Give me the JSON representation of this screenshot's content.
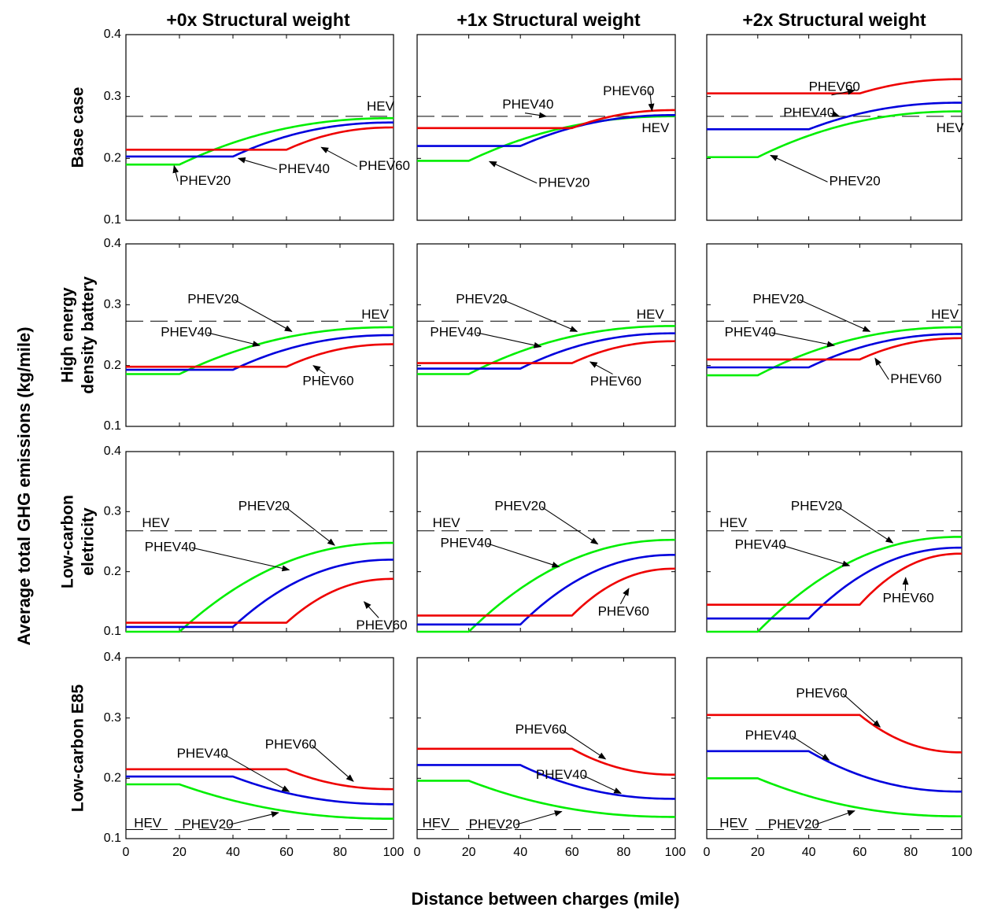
{
  "figure": {
    "y_axis_title": "Average total GHG emissions (kg/mile)",
    "x_axis_title": "Distance between charges (mile)",
    "column_titles": [
      "+0x Structural weight",
      "+1x Structural weight",
      "+2x Structural weight"
    ],
    "row_titles": [
      [
        "Base case"
      ],
      [
        "High energy",
        "density  battery"
      ],
      [
        "Low-carbon",
        "eletricity"
      ],
      [
        "Low-carbon E85"
      ]
    ]
  },
  "colors": {
    "PHEV20": "#00ee00",
    "PHEV40": "#0000dd",
    "PHEV60": "#ee0000",
    "HEV": "#000000"
  },
  "chart_data": [
    {
      "type": "line",
      "row": 0,
      "col": 0,
      "xlim": [
        0,
        100
      ],
      "ylim": [
        0.1,
        0.4
      ],
      "xticks": [
        0,
        20,
        40,
        60,
        80,
        100
      ],
      "yticks": [
        0.1,
        0.2,
        0.3,
        0.4
      ],
      "hev": 0.268,
      "series": [
        {
          "name": "PHEV20",
          "kind": "rise",
          "flat": 0.19,
          "at": 20,
          "end": 0.265
        },
        {
          "name": "PHEV40",
          "kind": "rise",
          "flat": 0.203,
          "at": 40,
          "end": 0.258
        },
        {
          "name": "PHEV60",
          "kind": "rise",
          "flat": 0.214,
          "at": 60,
          "end": 0.25
        }
      ],
      "annotations": [
        {
          "label": "HEV",
          "tx": 90,
          "ty": 0.283,
          "arrow": false
        },
        {
          "label": "PHEV20",
          "tx": 20,
          "ty": 0.163,
          "ax": 18,
          "ay": 0.188,
          "arrow": true
        },
        {
          "label": "PHEV40",
          "tx": 57,
          "ty": 0.182,
          "ax": 42,
          "ay": 0.2,
          "arrow": true
        },
        {
          "label": "PHEV60",
          "tx": 87,
          "ty": 0.187,
          "ax": 73,
          "ay": 0.218,
          "arrow": true
        }
      ]
    },
    {
      "type": "line",
      "row": 0,
      "col": 1,
      "xlim": [
        0,
        100
      ],
      "ylim": [
        0.1,
        0.4
      ],
      "xticks": [
        0,
        20,
        40,
        60,
        80,
        100
      ],
      "yticks": [
        0.1,
        0.2,
        0.3,
        0.4
      ],
      "hev": 0.268,
      "series": [
        {
          "name": "PHEV20",
          "kind": "rise",
          "flat": 0.196,
          "at": 20,
          "end": 0.268
        },
        {
          "name": "PHEV40",
          "kind": "rise",
          "flat": 0.22,
          "at": 40,
          "end": 0.27
        },
        {
          "name": "PHEV60",
          "kind": "rise",
          "flat": 0.249,
          "at": 60,
          "end": 0.278
        }
      ],
      "annotations": [
        {
          "label": "PHEV60",
          "tx": 72,
          "ty": 0.308,
          "ax": 91,
          "ay": 0.277,
          "arrow": true
        },
        {
          "label": "PHEV40",
          "tx": 33,
          "ty": 0.286,
          "ax": 50,
          "ay": 0.268,
          "arrow": true
        },
        {
          "label": "HEV",
          "tx": 87,
          "ty": 0.248,
          "arrow": false
        },
        {
          "label": "PHEV20",
          "tx": 47,
          "ty": 0.16,
          "ax": 28,
          "ay": 0.195,
          "arrow": true
        }
      ]
    },
    {
      "type": "line",
      "row": 0,
      "col": 2,
      "xlim": [
        0,
        100
      ],
      "ylim": [
        0.1,
        0.4
      ],
      "xticks": [
        0,
        20,
        40,
        60,
        80,
        100
      ],
      "yticks": [
        0.1,
        0.2,
        0.3,
        0.4
      ],
      "hev": 0.268,
      "series": [
        {
          "name": "PHEV20",
          "kind": "rise",
          "flat": 0.202,
          "at": 20,
          "end": 0.276
        },
        {
          "name": "PHEV40",
          "kind": "rise",
          "flat": 0.247,
          "at": 40,
          "end": 0.29
        },
        {
          "name": "PHEV60",
          "kind": "rise",
          "flat": 0.305,
          "at": 60,
          "end": 0.328
        }
      ],
      "annotations": [
        {
          "label": "PHEV60",
          "tx": 40,
          "ty": 0.315,
          "ax": 58,
          "ay": 0.31,
          "arrow": true
        },
        {
          "label": "PHEV40",
          "tx": 30,
          "ty": 0.273,
          "ax": 52,
          "ay": 0.268,
          "arrow": true
        },
        {
          "label": "HEV",
          "tx": 90,
          "ty": 0.248,
          "arrow": false
        },
        {
          "label": "PHEV20",
          "tx": 48,
          "ty": 0.162,
          "ax": 25,
          "ay": 0.205,
          "arrow": true
        }
      ]
    },
    {
      "type": "line",
      "row": 1,
      "col": 0,
      "xlim": [
        0,
        100
      ],
      "ylim": [
        0.1,
        0.4
      ],
      "xticks": [
        0,
        20,
        40,
        60,
        80,
        100
      ],
      "yticks": [
        0.1,
        0.2,
        0.3,
        0.4
      ],
      "hev": 0.273,
      "series": [
        {
          "name": "PHEV20",
          "kind": "rise",
          "flat": 0.186,
          "at": 20,
          "end": 0.263
        },
        {
          "name": "PHEV40",
          "kind": "rise",
          "flat": 0.193,
          "at": 40,
          "end": 0.25
        },
        {
          "name": "PHEV60",
          "kind": "rise",
          "flat": 0.198,
          "at": 60,
          "end": 0.235
        }
      ],
      "annotations": [
        {
          "label": "HEV",
          "tx": 88,
          "ty": 0.283,
          "arrow": false
        },
        {
          "label": "PHEV20",
          "tx": 23,
          "ty": 0.308,
          "ax": 62,
          "ay": 0.256,
          "arrow": true
        },
        {
          "label": "PHEV40",
          "tx": 13,
          "ty": 0.254,
          "ax": 50,
          "ay": 0.233,
          "arrow": true
        },
        {
          "label": "PHEV60",
          "tx": 66,
          "ty": 0.174,
          "ax": 70,
          "ay": 0.2,
          "arrow": true
        }
      ]
    },
    {
      "type": "line",
      "row": 1,
      "col": 1,
      "xlim": [
        0,
        100
      ],
      "ylim": [
        0.1,
        0.4
      ],
      "xticks": [
        0,
        20,
        40,
        60,
        80,
        100
      ],
      "yticks": [
        0.1,
        0.2,
        0.3,
        0.4
      ],
      "hev": 0.273,
      "series": [
        {
          "name": "PHEV20",
          "kind": "rise",
          "flat": 0.186,
          "at": 20,
          "end": 0.265
        },
        {
          "name": "PHEV40",
          "kind": "rise",
          "flat": 0.195,
          "at": 40,
          "end": 0.253
        },
        {
          "name": "PHEV60",
          "kind": "rise",
          "flat": 0.204,
          "at": 60,
          "end": 0.24
        }
      ],
      "annotations": [
        {
          "label": "HEV",
          "tx": 85,
          "ty": 0.283,
          "arrow": false
        },
        {
          "label": "PHEV20",
          "tx": 15,
          "ty": 0.308,
          "ax": 62,
          "ay": 0.256,
          "arrow": true
        },
        {
          "label": "PHEV40",
          "tx": 5,
          "ty": 0.254,
          "ax": 48,
          "ay": 0.231,
          "arrow": true
        },
        {
          "label": "PHEV60",
          "tx": 67,
          "ty": 0.173,
          "ax": 67,
          "ay": 0.206,
          "arrow": true
        }
      ]
    },
    {
      "type": "line",
      "row": 1,
      "col": 2,
      "xlim": [
        0,
        100
      ],
      "ylim": [
        0.1,
        0.4
      ],
      "xticks": [
        0,
        20,
        40,
        60,
        80,
        100
      ],
      "yticks": [
        0.1,
        0.2,
        0.3,
        0.4
      ],
      "hev": 0.273,
      "series": [
        {
          "name": "PHEV20",
          "kind": "rise",
          "flat": 0.184,
          "at": 20,
          "end": 0.263
        },
        {
          "name": "PHEV40",
          "kind": "rise",
          "flat": 0.197,
          "at": 40,
          "end": 0.252
        },
        {
          "name": "PHEV60",
          "kind": "rise",
          "flat": 0.21,
          "at": 60,
          "end": 0.245
        }
      ],
      "annotations": [
        {
          "label": "HEV",
          "tx": 88,
          "ty": 0.283,
          "arrow": false
        },
        {
          "label": "PHEV20",
          "tx": 18,
          "ty": 0.308,
          "ax": 64,
          "ay": 0.256,
          "arrow": true
        },
        {
          "label": "PHEV40",
          "tx": 7,
          "ty": 0.254,
          "ax": 50,
          "ay": 0.233,
          "arrow": true
        },
        {
          "label": "PHEV60",
          "tx": 72,
          "ty": 0.177,
          "ax": 66,
          "ay": 0.212,
          "arrow": true
        }
      ]
    },
    {
      "type": "line",
      "row": 2,
      "col": 0,
      "xlim": [
        0,
        100
      ],
      "ylim": [
        0.1,
        0.4
      ],
      "xticks": [
        0,
        20,
        40,
        60,
        80,
        100
      ],
      "yticks": [
        0.1,
        0.2,
        0.3,
        0.4
      ],
      "hev": 0.268,
      "series": [
        {
          "name": "PHEV20",
          "kind": "rise",
          "flat": 0.1,
          "at": 20,
          "end": 0.248
        },
        {
          "name": "PHEV40",
          "kind": "rise",
          "flat": 0.108,
          "at": 40,
          "end": 0.22
        },
        {
          "name": "PHEV60",
          "kind": "rise",
          "flat": 0.115,
          "at": 60,
          "end": 0.188
        }
      ],
      "annotations": [
        {
          "label": "HEV",
          "tx": 6,
          "ty": 0.28,
          "arrow": false
        },
        {
          "label": "PHEV20",
          "tx": 42,
          "ty": 0.308,
          "ax": 78,
          "ay": 0.244,
          "arrow": true
        },
        {
          "label": "PHEV40",
          "tx": 7,
          "ty": 0.24,
          "ax": 61,
          "ay": 0.203,
          "arrow": true
        },
        {
          "label": "PHEV60",
          "tx": 86,
          "ty": 0.11,
          "ax": 89,
          "ay": 0.15,
          "arrow": true
        }
      ]
    },
    {
      "type": "line",
      "row": 2,
      "col": 1,
      "xlim": [
        0,
        100
      ],
      "ylim": [
        0.1,
        0.4
      ],
      "xticks": [
        0,
        20,
        40,
        60,
        80,
        100
      ],
      "yticks": [
        0.1,
        0.2,
        0.3,
        0.4
      ],
      "hev": 0.268,
      "series": [
        {
          "name": "PHEV20",
          "kind": "rise",
          "flat": 0.1,
          "at": 20,
          "end": 0.253
        },
        {
          "name": "PHEV40",
          "kind": "rise",
          "flat": 0.112,
          "at": 40,
          "end": 0.228
        },
        {
          "name": "PHEV60",
          "kind": "rise",
          "flat": 0.127,
          "at": 60,
          "end": 0.205
        }
      ],
      "annotations": [
        {
          "label": "HEV",
          "tx": 6,
          "ty": 0.28,
          "arrow": false
        },
        {
          "label": "PHEV20",
          "tx": 30,
          "ty": 0.308,
          "ax": 70,
          "ay": 0.246,
          "arrow": true
        },
        {
          "label": "PHEV40",
          "tx": 9,
          "ty": 0.247,
          "ax": 55,
          "ay": 0.208,
          "arrow": true
        },
        {
          "label": "PHEV60",
          "tx": 70,
          "ty": 0.133,
          "ax": 82,
          "ay": 0.172,
          "arrow": true
        }
      ]
    },
    {
      "type": "line",
      "row": 2,
      "col": 2,
      "xlim": [
        0,
        100
      ],
      "ylim": [
        0.1,
        0.4
      ],
      "xticks": [
        0,
        20,
        40,
        60,
        80,
        100
      ],
      "yticks": [
        0.1,
        0.2,
        0.3,
        0.4
      ],
      "hev": 0.268,
      "series": [
        {
          "name": "PHEV20",
          "kind": "rise",
          "flat": 0.1,
          "at": 20,
          "end": 0.258
        },
        {
          "name": "PHEV40",
          "kind": "rise",
          "flat": 0.122,
          "at": 40,
          "end": 0.24
        },
        {
          "name": "PHEV60",
          "kind": "rise",
          "flat": 0.145,
          "at": 60,
          "end": 0.23
        }
      ],
      "annotations": [
        {
          "label": "HEV",
          "tx": 5,
          "ty": 0.28,
          "arrow": false
        },
        {
          "label": "PHEV20",
          "tx": 33,
          "ty": 0.308,
          "ax": 73,
          "ay": 0.248,
          "arrow": true
        },
        {
          "label": "PHEV40",
          "tx": 11,
          "ty": 0.244,
          "ax": 56,
          "ay": 0.21,
          "arrow": true
        },
        {
          "label": "PHEV60",
          "tx": 69,
          "ty": 0.155,
          "ax": 78,
          "ay": 0.19,
          "arrow": true
        }
      ]
    },
    {
      "type": "line",
      "row": 3,
      "col": 0,
      "xlim": [
        0,
        100
      ],
      "ylim": [
        0.1,
        0.4
      ],
      "xticks": [
        0,
        20,
        40,
        60,
        80,
        100
      ],
      "yticks": [
        0.1,
        0.2,
        0.3,
        0.4
      ],
      "hev": 0.115,
      "series": [
        {
          "name": "PHEV20",
          "kind": "fall",
          "flat": 0.19,
          "at": 20,
          "end": 0.133
        },
        {
          "name": "PHEV40",
          "kind": "fall",
          "flat": 0.203,
          "at": 40,
          "end": 0.157
        },
        {
          "name": "PHEV60",
          "kind": "fall",
          "flat": 0.215,
          "at": 60,
          "end": 0.182
        }
      ],
      "annotations": [
        {
          "label": "PHEV60",
          "tx": 52,
          "ty": 0.255,
          "ax": 85,
          "ay": 0.195,
          "arrow": true
        },
        {
          "label": "PHEV40",
          "tx": 19,
          "ty": 0.24,
          "ax": 61,
          "ay": 0.178,
          "arrow": true
        },
        {
          "label": "HEV",
          "tx": 3,
          "ty": 0.125,
          "arrow": false
        },
        {
          "label": "PHEV20",
          "tx": 21,
          "ty": 0.123,
          "ax": 57,
          "ay": 0.143,
          "arrow": true
        }
      ]
    },
    {
      "type": "line",
      "row": 3,
      "col": 1,
      "xlim": [
        0,
        100
      ],
      "ylim": [
        0.1,
        0.4
      ],
      "xticks": [
        0,
        20,
        40,
        60,
        80,
        100
      ],
      "yticks": [
        0.1,
        0.2,
        0.3,
        0.4
      ],
      "hev": 0.115,
      "series": [
        {
          "name": "PHEV20",
          "kind": "fall",
          "flat": 0.196,
          "at": 20,
          "end": 0.136
        },
        {
          "name": "PHEV40",
          "kind": "fall",
          "flat": 0.222,
          "at": 40,
          "end": 0.166
        },
        {
          "name": "PHEV60",
          "kind": "fall",
          "flat": 0.249,
          "at": 60,
          "end": 0.206
        }
      ],
      "annotations": [
        {
          "label": "PHEV60",
          "tx": 38,
          "ty": 0.28,
          "ax": 73,
          "ay": 0.232,
          "arrow": true
        },
        {
          "label": "PHEV40",
          "tx": 46,
          "ty": 0.205,
          "ax": 79,
          "ay": 0.175,
          "arrow": true
        },
        {
          "label": "HEV",
          "tx": 2,
          "ty": 0.125,
          "arrow": false
        },
        {
          "label": "PHEV20",
          "tx": 20,
          "ty": 0.123,
          "ax": 56,
          "ay": 0.145,
          "arrow": true
        }
      ]
    },
    {
      "type": "line",
      "row": 3,
      "col": 2,
      "xlim": [
        0,
        100
      ],
      "ylim": [
        0.1,
        0.4
      ],
      "xticks": [
        0,
        20,
        40,
        60,
        80,
        100
      ],
      "yticks": [
        0.1,
        0.2,
        0.3,
        0.4
      ],
      "hev": 0.115,
      "series": [
        {
          "name": "PHEV20",
          "kind": "fall",
          "flat": 0.2,
          "at": 20,
          "end": 0.137
        },
        {
          "name": "PHEV40",
          "kind": "fall",
          "flat": 0.245,
          "at": 40,
          "end": 0.178
        },
        {
          "name": "PHEV60",
          "kind": "fall",
          "flat": 0.305,
          "at": 60,
          "end": 0.243
        }
      ],
      "annotations": [
        {
          "label": "PHEV60",
          "tx": 35,
          "ty": 0.34,
          "ax": 68,
          "ay": 0.285,
          "arrow": true
        },
        {
          "label": "PHEV40",
          "tx": 15,
          "ty": 0.27,
          "ax": 48,
          "ay": 0.23,
          "arrow": true
        },
        {
          "label": "HEV",
          "tx": 5,
          "ty": 0.125,
          "arrow": false
        },
        {
          "label": "PHEV20",
          "tx": 24,
          "ty": 0.123,
          "ax": 58,
          "ay": 0.146,
          "arrow": true
        }
      ]
    }
  ]
}
